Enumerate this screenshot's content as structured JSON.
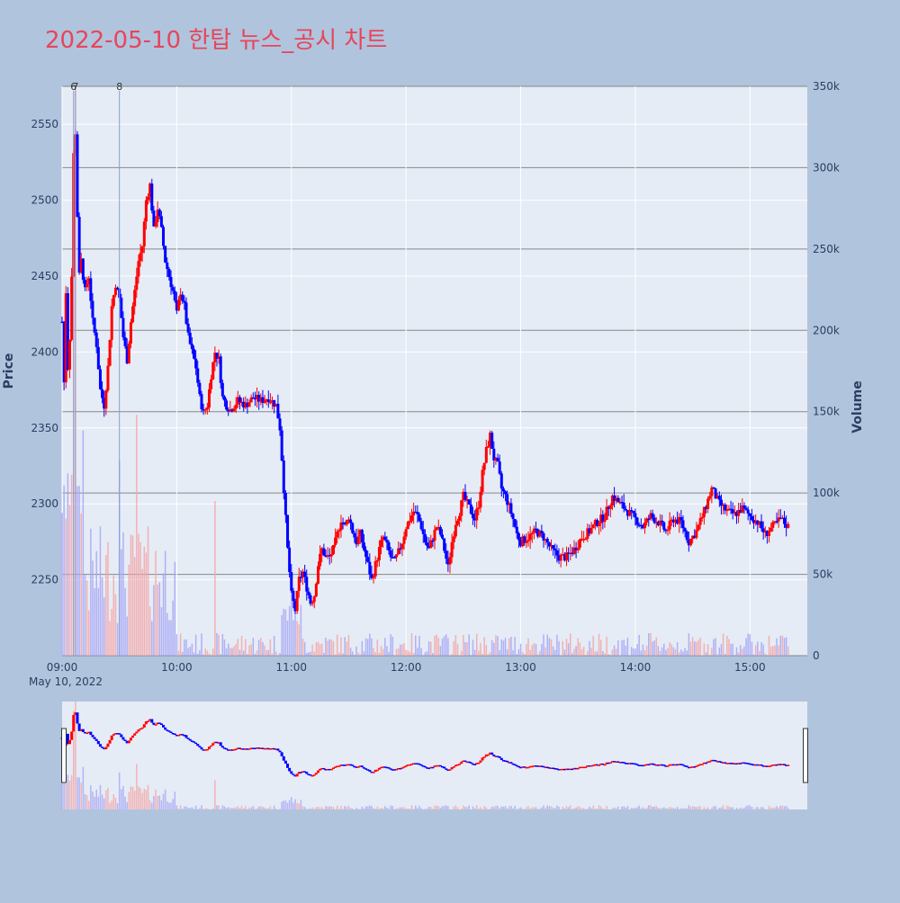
{
  "title": "2022-05-10 한탑 뉴스_공시 차트",
  "colors": {
    "page_bg": "#b0c4de",
    "plot_bg": "#e5ecf6",
    "title": "#e8455a",
    "up": "#ff0000",
    "down": "#0000ff",
    "vol_up": "#f4a6a6",
    "vol_down": "#a6a6f4"
  },
  "chart_data": {
    "type": "candlestick",
    "title": "2022-05-10 한탑 뉴스_공시 차트",
    "ylabel": "Price",
    "y2label": "Volume",
    "date_label": "May 10, 2022",
    "x_range": [
      "09:00",
      "15:30"
    ],
    "ylim": [
      2200,
      2575
    ],
    "y2lim": [
      0,
      350000
    ],
    "y_ticks": [
      "2250",
      "2300",
      "2350",
      "2400",
      "2450",
      "2500",
      "2550"
    ],
    "y_tick_values": [
      2250,
      2300,
      2350,
      2400,
      2450,
      2500,
      2550
    ],
    "y2_ticks": [
      "0",
      "50k",
      "100k",
      "150k",
      "200k",
      "250k",
      "300k",
      "350k"
    ],
    "y2_tick_values": [
      0,
      50000,
      100000,
      150000,
      200000,
      250000,
      300000,
      350000
    ],
    "x_ticks": [
      "09:00",
      "10:00",
      "11:00",
      "12:00",
      "13:00",
      "14:00",
      "15:00"
    ],
    "news_markers": [
      {
        "label": "6",
        "time": "09:06"
      },
      {
        "label": "7",
        "time": "09:07"
      },
      {
        "label": "8",
        "time": "09:30"
      }
    ],
    "price_path": [
      [
        "09:00",
        2420
      ],
      [
        "09:01",
        2380
      ],
      [
        "09:02",
        2440
      ],
      [
        "09:03",
        2390
      ],
      [
        "09:04",
        2410
      ],
      [
        "09:05",
        2450
      ],
      [
        "09:06",
        2530
      ],
      [
        "09:07",
        2545
      ],
      [
        "09:08",
        2490
      ],
      [
        "09:09",
        2450
      ],
      [
        "09:10",
        2460
      ],
      [
        "09:12",
        2440
      ],
      [
        "09:14",
        2450
      ],
      [
        "09:16",
        2420
      ],
      [
        "09:18",
        2405
      ],
      [
        "09:20",
        2375
      ],
      [
        "09:22",
        2365
      ],
      [
        "09:24",
        2390
      ],
      [
        "09:26",
        2430
      ],
      [
        "09:28",
        2445
      ],
      [
        "09:30",
        2435
      ],
      [
        "09:32",
        2410
      ],
      [
        "09:34",
        2395
      ],
      [
        "09:36",
        2420
      ],
      [
        "09:38",
        2440
      ],
      [
        "09:40",
        2460
      ],
      [
        "09:42",
        2470
      ],
      [
        "09:44",
        2500
      ],
      [
        "09:46",
        2510
      ],
      [
        "09:48",
        2480
      ],
      [
        "09:50",
        2495
      ],
      [
        "09:52",
        2480
      ],
      [
        "09:54",
        2460
      ],
      [
        "09:56",
        2450
      ],
      [
        "09:58",
        2440
      ],
      [
        "10:00",
        2425
      ],
      [
        "10:02",
        2440
      ],
      [
        "10:04",
        2430
      ],
      [
        "10:06",
        2410
      ],
      [
        "10:08",
        2400
      ],
      [
        "10:10",
        2390
      ],
      [
        "10:12",
        2370
      ],
      [
        "10:14",
        2360
      ],
      [
        "10:16",
        2365
      ],
      [
        "10:18",
        2385
      ],
      [
        "10:20",
        2400
      ],
      [
        "10:22",
        2395
      ],
      [
        "10:24",
        2370
      ],
      [
        "10:26",
        2365
      ],
      [
        "10:28",
        2362
      ],
      [
        "10:32",
        2368
      ],
      [
        "10:36",
        2365
      ],
      [
        "10:40",
        2370
      ],
      [
        "10:44",
        2368
      ],
      [
        "10:48",
        2370
      ],
      [
        "10:52",
        2365
      ],
      [
        "10:54",
        2350
      ],
      [
        "10:56",
        2310
      ],
      [
        "10:58",
        2270
      ],
      [
        "11:00",
        2240
      ],
      [
        "11:02",
        2230
      ],
      [
        "11:04",
        2250
      ],
      [
        "11:06",
        2255
      ],
      [
        "11:08",
        2245
      ],
      [
        "11:10",
        2235
      ],
      [
        "11:12",
        2240
      ],
      [
        "11:14",
        2260
      ],
      [
        "11:16",
        2270
      ],
      [
        "11:18",
        2265
      ],
      [
        "11:20",
        2265
      ],
      [
        "11:22",
        2270
      ],
      [
        "11:24",
        2280
      ],
      [
        "11:26",
        2290
      ],
      [
        "11:28",
        2285
      ],
      [
        "11:30",
        2292
      ],
      [
        "11:32",
        2282
      ],
      [
        "11:34",
        2275
      ],
      [
        "11:36",
        2280
      ],
      [
        "11:38",
        2270
      ],
      [
        "11:40",
        2260
      ],
      [
        "11:42",
        2250
      ],
      [
        "11:44",
        2260
      ],
      [
        "11:46",
        2270
      ],
      [
        "11:48",
        2278
      ],
      [
        "11:50",
        2272
      ],
      [
        "11:52",
        2265
      ],
      [
        "11:54",
        2262
      ],
      [
        "11:56",
        2268
      ],
      [
        "11:58",
        2275
      ],
      [
        "12:00",
        2285
      ],
      [
        "12:02",
        2290
      ],
      [
        "12:04",
        2295
      ],
      [
        "12:06",
        2292
      ],
      [
        "12:08",
        2285
      ],
      [
        "12:10",
        2275
      ],
      [
        "12:12",
        2270
      ],
      [
        "12:14",
        2278
      ],
      [
        "12:16",
        2285
      ],
      [
        "12:18",
        2280
      ],
      [
        "12:20",
        2270
      ],
      [
        "12:22",
        2258
      ],
      [
        "12:24",
        2275
      ],
      [
        "12:26",
        2288
      ],
      [
        "12:28",
        2295
      ],
      [
        "12:30",
        2305
      ],
      [
        "12:32",
        2300
      ],
      [
        "12:34",
        2295
      ],
      [
        "12:36",
        2290
      ],
      [
        "12:38",
        2300
      ],
      [
        "12:40",
        2320
      ],
      [
        "12:42",
        2335
      ],
      [
        "12:44",
        2345
      ],
      [
        "12:46",
        2330
      ],
      [
        "12:48",
        2325
      ],
      [
        "12:50",
        2310
      ],
      [
        "12:52",
        2305
      ],
      [
        "12:54",
        2298
      ],
      [
        "12:56",
        2290
      ],
      [
        "12:58",
        2280
      ],
      [
        "13:00",
        2275
      ],
      [
        "13:04",
        2278
      ],
      [
        "13:08",
        2282
      ],
      [
        "13:12",
        2278
      ],
      [
        "13:16",
        2270
      ],
      [
        "13:20",
        2265
      ],
      [
        "13:24",
        2265
      ],
      [
        "13:28",
        2270
      ],
      [
        "13:32",
        2278
      ],
      [
        "13:36",
        2282
      ],
      [
        "13:40",
        2288
      ],
      [
        "13:44",
        2292
      ],
      [
        "13:48",
        2305
      ],
      [
        "13:52",
        2300
      ],
      [
        "13:56",
        2295
      ],
      [
        "14:00",
        2290
      ],
      [
        "14:04",
        2285
      ],
      [
        "14:08",
        2292
      ],
      [
        "14:12",
        2288
      ],
      [
        "14:16",
        2282
      ],
      [
        "14:20",
        2290
      ],
      [
        "14:24",
        2288
      ],
      [
        "14:28",
        2275
      ],
      [
        "14:32",
        2282
      ],
      [
        "14:36",
        2295
      ],
      [
        "14:40",
        2310
      ],
      [
        "14:44",
        2300
      ],
      [
        "14:48",
        2295
      ],
      [
        "14:52",
        2293
      ],
      [
        "14:56",
        2297
      ],
      [
        "15:00",
        2292
      ],
      [
        "15:04",
        2288
      ],
      [
        "15:08",
        2280
      ],
      [
        "15:12",
        2285
      ],
      [
        "15:16",
        2290
      ],
      [
        "15:20",
        2285
      ]
    ]
  }
}
